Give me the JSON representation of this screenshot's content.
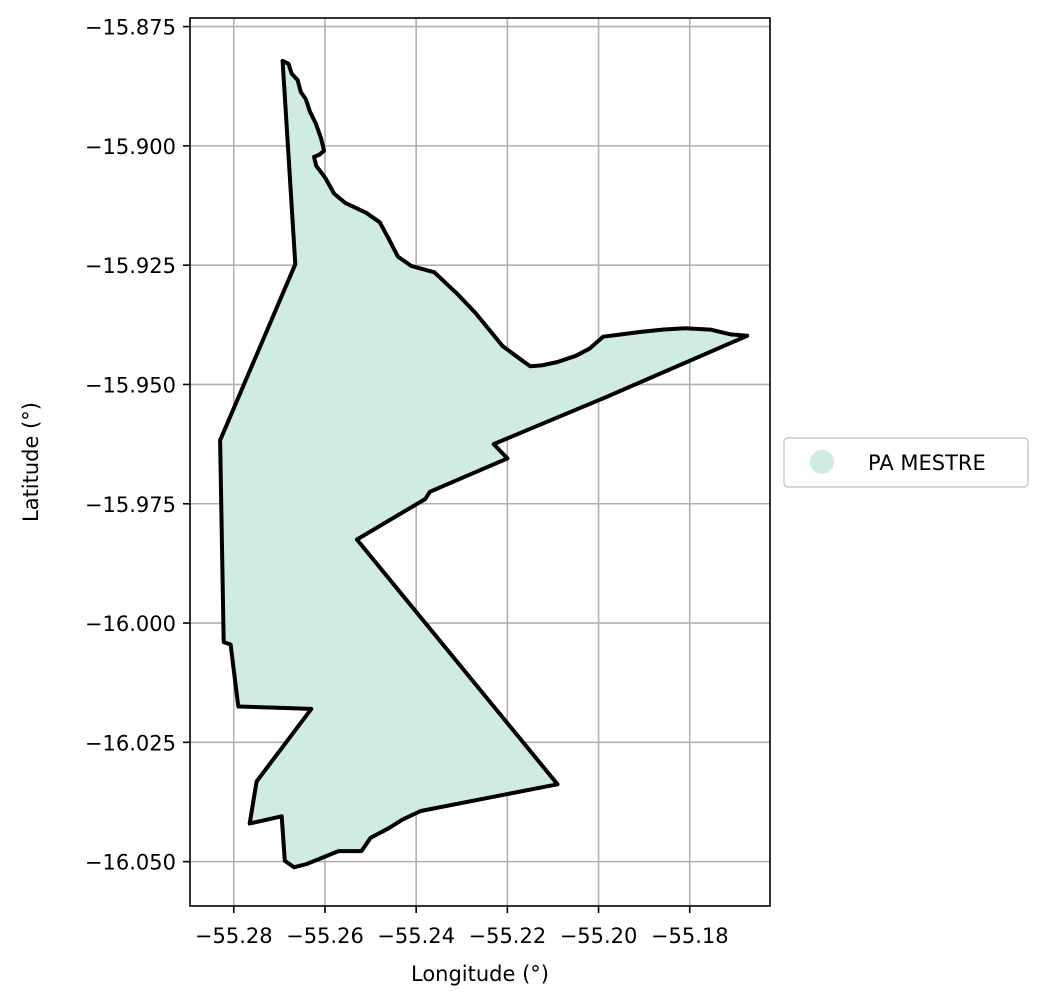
{
  "chart_data": {
    "type": "map",
    "xlabel": "Longitude (°)",
    "ylabel": "Latitude (°)",
    "xlim": [
      -55.2896,
      -55.1624
    ],
    "ylim": [
      -16.0593,
      -15.8732
    ],
    "xticks": [
      -55.28,
      -55.26,
      -55.24,
      -55.22,
      -55.2,
      -55.18
    ],
    "xtick_labels": [
      "−55.28",
      "−55.26",
      "−55.24",
      "−55.22",
      "−55.20",
      "−55.18"
    ],
    "yticks": [
      -15.875,
      -15.9,
      -15.925,
      -15.95,
      -15.975,
      -16.0,
      -16.025,
      -16.05
    ],
    "ytick_labels": [
      "−15.875",
      "−15.900",
      "−15.925",
      "−15.950",
      "−15.975",
      "−16.000",
      "−16.025",
      "−16.050"
    ],
    "grid": true,
    "legend": {
      "position": "center-right",
      "entries": [
        {
          "label": "PA MESTRE",
          "color": "#d0ebe0"
        }
      ]
    },
    "series": [
      {
        "name": "PA MESTRE",
        "fill": "#d0ebe0",
        "edge": "#000000",
        "polygon": [
          [
            -55.2693,
            -15.8822
          ],
          [
            -55.268,
            -15.8828
          ],
          [
            -55.2673,
            -15.8849
          ],
          [
            -55.266,
            -15.8862
          ],
          [
            -55.2653,
            -15.8887
          ],
          [
            -55.2642,
            -15.8902
          ],
          [
            -55.2633,
            -15.8928
          ],
          [
            -55.262,
            -15.8953
          ],
          [
            -55.2609,
            -15.8983
          ],
          [
            -55.2602,
            -15.901
          ],
          [
            -55.2613,
            -15.9019
          ],
          [
            -55.2624,
            -15.9023
          ],
          [
            -55.2619,
            -15.9042
          ],
          [
            -55.26,
            -15.9066
          ],
          [
            -55.258,
            -15.91
          ],
          [
            -55.2555,
            -15.912
          ],
          [
            -55.251,
            -15.914
          ],
          [
            -55.248,
            -15.916
          ],
          [
            -55.246,
            -15.9195
          ],
          [
            -55.244,
            -15.9232
          ],
          [
            -55.241,
            -15.9252
          ],
          [
            -55.236,
            -15.9265
          ],
          [
            -55.231,
            -15.931
          ],
          [
            -55.227,
            -15.935
          ],
          [
            -55.224,
            -15.9385
          ],
          [
            -55.221,
            -15.942
          ],
          [
            -55.217,
            -15.9448
          ],
          [
            -55.215,
            -15.9462
          ],
          [
            -55.2125,
            -15.946
          ],
          [
            -55.209,
            -15.9453
          ],
          [
            -55.205,
            -15.944
          ],
          [
            -55.202,
            -15.9425
          ],
          [
            -55.199,
            -15.94
          ],
          [
            -55.195,
            -15.9395
          ],
          [
            -55.191,
            -15.939
          ],
          [
            -55.186,
            -15.9385
          ],
          [
            -55.181,
            -15.9382
          ],
          [
            -55.1755,
            -15.9385
          ],
          [
            -55.171,
            -15.9395
          ],
          [
            -55.1674,
            -15.9398
          ],
          [
            -55.198,
            -15.9525
          ],
          [
            -55.223,
            -15.9625
          ],
          [
            -55.22,
            -15.9655
          ],
          [
            -55.237,
            -15.9725
          ],
          [
            -55.238,
            -15.974
          ],
          [
            -55.253,
            -15.9825
          ],
          [
            -55.209,
            -16.0338
          ],
          [
            -55.239,
            -16.0394
          ],
          [
            -55.243,
            -16.0412
          ],
          [
            -55.246,
            -16.043
          ],
          [
            -55.25,
            -16.045
          ],
          [
            -55.252,
            -16.0478
          ],
          [
            -55.257,
            -16.0478
          ],
          [
            -55.264,
            -16.0505
          ],
          [
            -55.2668,
            -16.0512
          ],
          [
            -55.2688,
            -16.0498
          ],
          [
            -55.2695,
            -16.0405
          ],
          [
            -55.2765,
            -16.042
          ],
          [
            -55.275,
            -16.0332
          ],
          [
            -55.263,
            -16.018
          ],
          [
            -55.279,
            -16.0175
          ],
          [
            -55.2807,
            -16.0045
          ],
          [
            -55.2822,
            -16.004
          ],
          [
            -55.283,
            -15.9617
          ],
          [
            -55.2665,
            -15.9248
          ],
          [
            -55.2693,
            -15.8822
          ]
        ]
      }
    ]
  }
}
